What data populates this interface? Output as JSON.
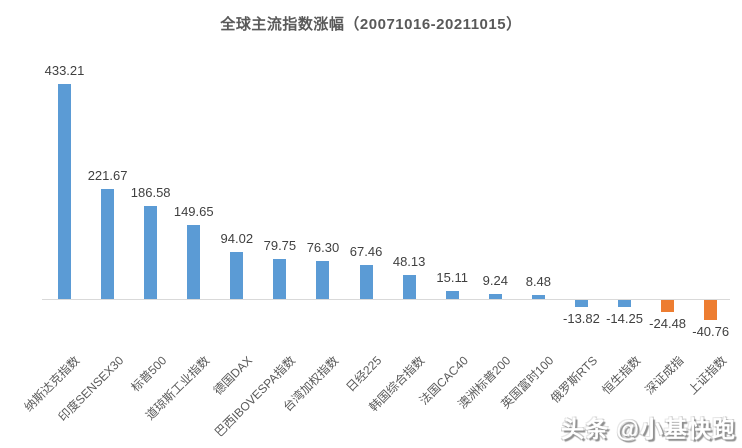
{
  "chart_data": {
    "type": "bar",
    "title": "全球主流指数涨幅（20071016-20211015）",
    "categories": [
      "纳斯达克指数",
      "印度SENSEX30",
      "标普500",
      "道琼斯工业指数",
      "德国DAX",
      "巴西IBOVESPA指数",
      "台湾加权指数",
      "日经225",
      "韩国综合指数",
      "法国CAC40",
      "澳洲标普200",
      "英国富时100",
      "俄罗斯RTS",
      "恒生指数",
      "深证成指",
      "上证指数"
    ],
    "values": [
      433.21,
      221.67,
      186.58,
      149.65,
      94.02,
      79.75,
      76.3,
      67.46,
      48.13,
      15.11,
      9.24,
      8.48,
      -13.82,
      -14.25,
      -24.48,
      -40.76
    ],
    "value_labels": [
      "433.21",
      "221.67",
      "186.58",
      "149.65",
      "94.02",
      "79.75",
      "76.30",
      "67.46",
      "48.13",
      "15.11",
      "9.24",
      "8.48",
      "-13.82",
      "-14.25",
      "-24.48",
      "-40.76"
    ],
    "bar_colors": [
      "#5B9BD5",
      "#5B9BD5",
      "#5B9BD5",
      "#5B9BD5",
      "#5B9BD5",
      "#5B9BD5",
      "#5B9BD5",
      "#5B9BD5",
      "#5B9BD5",
      "#5B9BD5",
      "#5B9BD5",
      "#5B9BD5",
      "#5B9BD5",
      "#5B9BD5",
      "#ED7D31",
      "#ED7D31"
    ],
    "colors": {
      "bar_positive_default": "#5B9BD5",
      "bar_highlight": "#ED7D31",
      "axis_line": "#D9D9D9",
      "value_label": "#404040",
      "category_label": "#595959",
      "title": "#595959"
    },
    "xlabel": "",
    "ylabel": "",
    "ylim": [
      -60,
      460
    ],
    "grid": false,
    "legend": false,
    "y_axis_ticks_visible": false,
    "data_labels_visible": true
  },
  "watermark": {
    "text": "头条 @小基快跑"
  }
}
